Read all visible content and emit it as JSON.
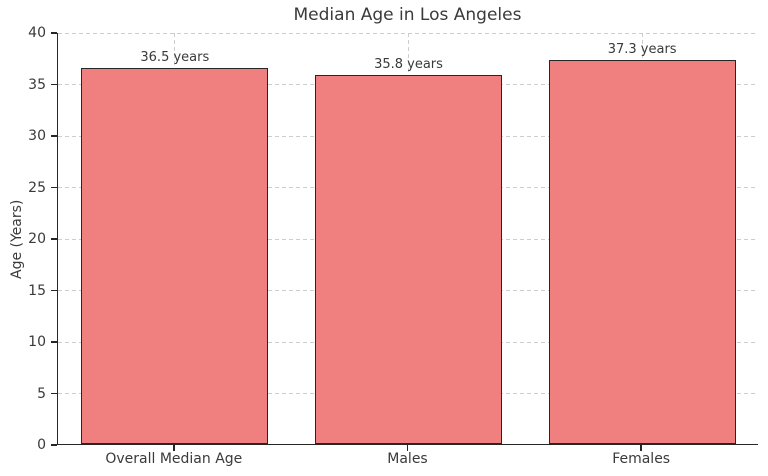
{
  "chart_data": {
    "type": "bar",
    "title": "Median Age in Los Angeles",
    "xlabel": "",
    "ylabel": "Age (Years)",
    "categories": [
      "Overall Median Age",
      "Males",
      "Females"
    ],
    "values": [
      36.5,
      35.8,
      37.3
    ],
    "bar_labels": [
      "36.5 years",
      "35.8 years",
      "37.3 years"
    ],
    "ylim": [
      0,
      40
    ],
    "yticks": [
      0,
      5,
      10,
      15,
      20,
      25,
      30,
      35,
      40
    ],
    "grid": "dashed, horizontal and vertical",
    "legend_position": "none",
    "colors": {
      "bar_fill": "#f08080",
      "bar_edge": "#262626",
      "grid_line": "#cdcdcd",
      "axis_line": "#262626",
      "text": "#3a3a3a",
      "background": "#ffffff"
    }
  }
}
